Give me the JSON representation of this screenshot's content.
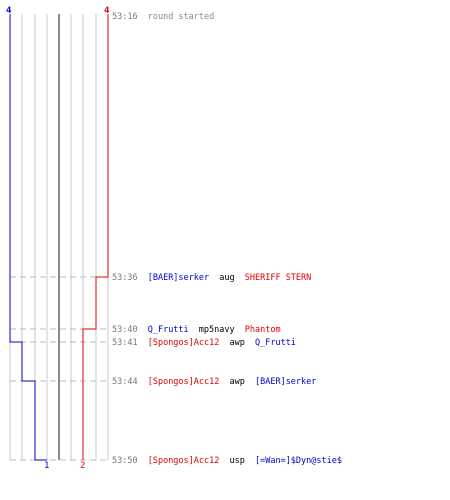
{
  "colors": {
    "blue_team": "#0000cc",
    "red_team": "#dd0000",
    "time": "#777777",
    "event": "#888888",
    "grid_light": "#c8c8c8",
    "grid_mid": "#888888",
    "dashed": "#bbbbbb",
    "text": "#000000"
  },
  "header": {
    "start_time": "53:16",
    "start_label": "round started",
    "blue_start_count": "4",
    "red_start_count": "4"
  },
  "footer": {
    "blue_end_count": "1",
    "red_end_count": "2"
  },
  "events": [
    {
      "time": "53:36",
      "killer": "[BAER]serker",
      "killer_team": "blue",
      "weapon": "aug",
      "victim": "SHERIFF STERN",
      "victim_team": "red"
    },
    {
      "time": "53:40",
      "killer": "Q_Frutti",
      "killer_team": "blue",
      "weapon": "mp5navy",
      "victim": "Phantom",
      "victim_team": "red"
    },
    {
      "time": "53:41",
      "killer": "[Spongos]Acc12",
      "killer_team": "red",
      "weapon": "awp",
      "victim": "Q_Frutti",
      "victim_team": "blue"
    },
    {
      "time": "53:44",
      "killer": "[Spongos]Acc12",
      "killer_team": "red",
      "weapon": "awp",
      "victim": "[BAER]serker",
      "victim_team": "blue"
    },
    {
      "time": "53:50",
      "killer": "[Spongos]Acc12",
      "killer_team": "red",
      "weapon": "usp",
      "victim": "[=Wan=]$Dyn@stie$",
      "victim_team": "blue"
    }
  ]
}
